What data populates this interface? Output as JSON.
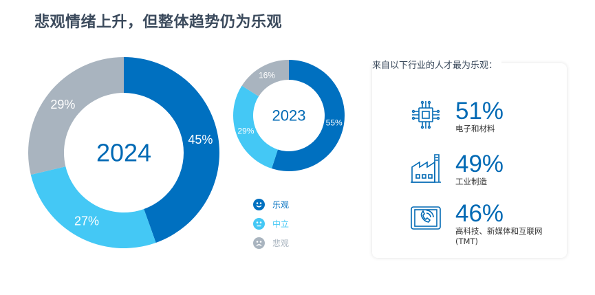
{
  "title": "悲观情绪上升，但整体趋势仍为乐观",
  "colors": {
    "optimistic": "#0070c0",
    "neutral": "#44c8f5",
    "pessimistic": "#a9b4bf"
  },
  "chart_data": [
    {
      "type": "pie",
      "center_label": "2024",
      "categories": [
        "乐观",
        "中立",
        "悲观"
      ],
      "values": [
        45,
        27,
        29
      ],
      "labels": [
        "45%",
        "27%",
        "29%"
      ]
    },
    {
      "type": "pie",
      "center_label": "2023",
      "categories": [
        "乐观",
        "中立",
        "悲观"
      ],
      "values": [
        55,
        29,
        16
      ],
      "labels": [
        "55%",
        "29%",
        "16%"
      ]
    }
  ],
  "legend": [
    {
      "label": "乐观",
      "icon": "smile-icon"
    },
    {
      "label": "中立",
      "icon": "neutral-face-icon"
    },
    {
      "label": "悲观",
      "icon": "frown-icon"
    }
  ],
  "panel": {
    "title": "来自以下行业的人才最为乐观：",
    "industries": [
      {
        "percent": "51%",
        "name": "电子和材料",
        "icon": "microchip-icon"
      },
      {
        "percent": "49%",
        "name": "工业制造",
        "icon": "factory-icon"
      },
      {
        "percent": "46%",
        "name": "高科技、新媒体和互联网",
        "name2": "(TMT)",
        "icon": "tablet-phone-icon"
      }
    ]
  }
}
